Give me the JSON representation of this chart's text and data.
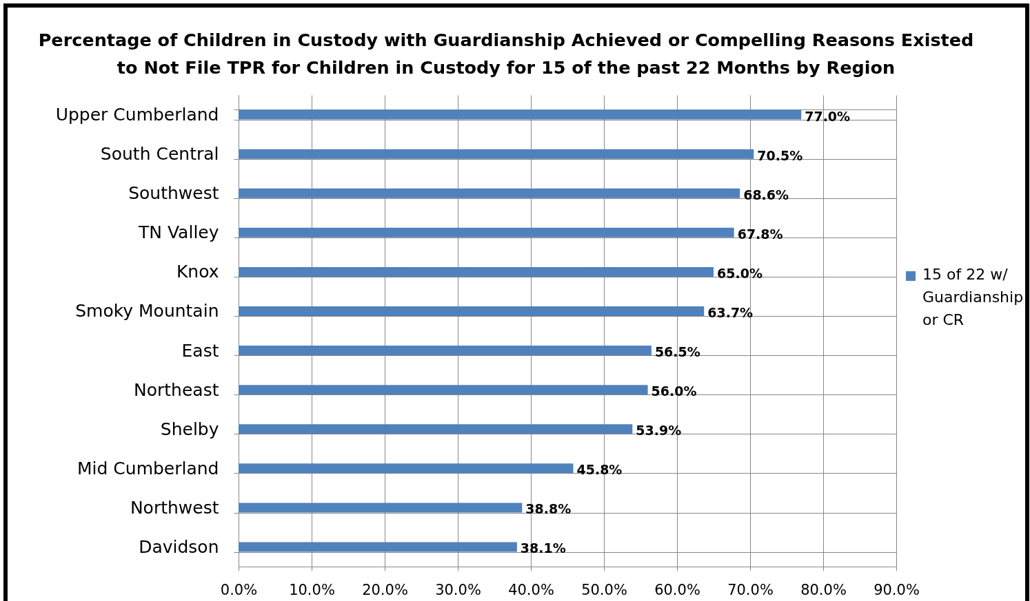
{
  "chart_data": {
    "type": "bar",
    "orientation": "horizontal",
    "title": "Percentage of Children in Custody with Guardianship Achieved or Compelling Reasons Existed to Not File TPR for Children in Custody for 15 of the past 22 Months by Region",
    "categories": [
      "Upper Cumberland",
      "South Central",
      "Southwest",
      "TN Valley",
      "Knox",
      "Smoky Mountain",
      "East",
      "Northeast",
      "Shelby",
      "Mid Cumberland",
      "Northwest",
      "Davidson"
    ],
    "series": [
      {
        "name": "15 of 22 w/ Guardianship or CR",
        "color": "#4f81bd",
        "values": [
          77.0,
          70.5,
          68.6,
          67.8,
          65.0,
          63.7,
          56.5,
          56.0,
          53.9,
          45.8,
          38.8,
          38.1
        ],
        "value_labels": [
          "77.0%",
          "70.5%",
          "68.6%",
          "67.8%",
          "65.0%",
          "63.7%",
          "56.5%",
          "56.0%",
          "53.9%",
          "45.8%",
          "38.8%",
          "38.1%"
        ]
      }
    ],
    "xlim": [
      0,
      90
    ],
    "xticks": [
      {
        "value": 0,
        "label": "0.0%"
      },
      {
        "value": 10,
        "label": "10.0%"
      },
      {
        "value": 20,
        "label": "20.0%"
      },
      {
        "value": 30,
        "label": "30.0%"
      },
      {
        "value": 40,
        "label": "40.0%"
      },
      {
        "value": 50,
        "label": "50.0%"
      },
      {
        "value": 60,
        "label": "60.0%"
      },
      {
        "value": 70,
        "label": "70.0%"
      },
      {
        "value": 80,
        "label": "80.0%"
      },
      {
        "value": 90,
        "label": "90.0%"
      }
    ],
    "grid": true,
    "legend": "right"
  }
}
